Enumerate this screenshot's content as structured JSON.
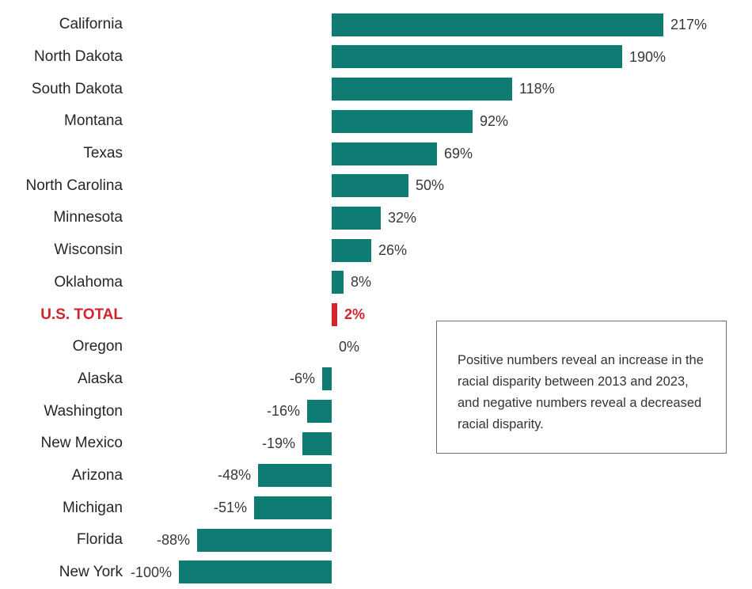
{
  "chart_data": {
    "type": "bar",
    "orientation": "horizontal",
    "title": "",
    "xlabel": "",
    "ylabel": "",
    "grid": false,
    "axis_ticks_visible": false,
    "xlim": [
      -100,
      217
    ],
    "categories": [
      "California",
      "North Dakota",
      "South Dakota",
      "Montana",
      "Texas",
      "North Carolina",
      "Minnesota",
      "Wisconsin",
      "Oklahoma",
      "U.S. TOTAL",
      "Oregon",
      "Alaska",
      "Washington",
      "New Mexico",
      "Arizona",
      "Michigan",
      "Florida",
      "New York"
    ],
    "values": [
      217,
      190,
      118,
      92,
      69,
      50,
      32,
      26,
      8,
      2,
      0,
      -6,
      -16,
      -19,
      -48,
      -51,
      -88,
      -100
    ],
    "value_labels": [
      "217%",
      "190%",
      "118%",
      "92%",
      "69%",
      "50%",
      "32%",
      "26%",
      "8%",
      "2%",
      "0%",
      "-6%",
      "-16%",
      "-19%",
      "-48%",
      "-51%",
      "-88%",
      "-100%"
    ],
    "highlight_category": "U.S. TOTAL",
    "bar_color": "#0e7c73",
    "highlight_color": "#d2232e",
    "label_color": "#262626",
    "value_label_color": "#383838"
  },
  "annotation": {
    "text": "Positive numbers reveal an increase in the racial disparity between 2013 and 2023, and negative numbers reveal a decreased racial disparity."
  },
  "colors": {
    "teal_bar": "#0e7c73",
    "highlight_red": "#d2232e",
    "annotation_border": "#707070",
    "background": "#ffffff"
  }
}
